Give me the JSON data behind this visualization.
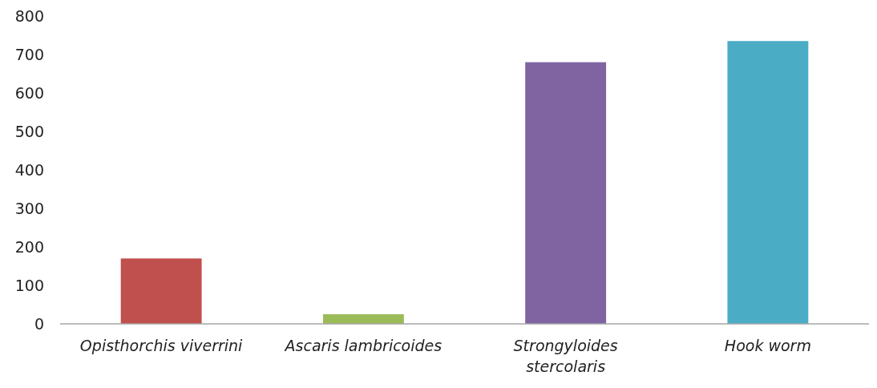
{
  "chart_data": {
    "type": "bar",
    "categories": [
      "Opisthorchis viverrini",
      "Ascaris lambricoides",
      "Strongyloides stercolaris",
      "Hook worm"
    ],
    "values": [
      170,
      25,
      680,
      735
    ],
    "colors": [
      "#c0504d",
      "#9bbb59",
      "#8064a2",
      "#4bacc6"
    ],
    "ylim": [
      0,
      800
    ],
    "yticks": [
      0,
      100,
      200,
      300,
      400,
      500,
      600,
      700,
      800
    ],
    "grid": false
  }
}
